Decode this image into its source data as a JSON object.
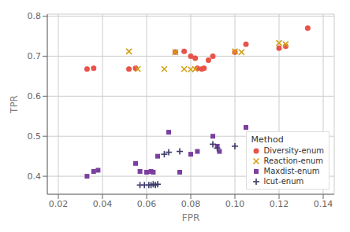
{
  "chart_data": {
    "type": "scatter",
    "xlabel": "FPR",
    "ylabel": "TPR",
    "legend_title": "Method",
    "legend": "lower right",
    "grid": true,
    "xlim": [
      0.015,
      0.145
    ],
    "ylim": [
      0.355,
      0.805
    ],
    "xticks": [
      0.02,
      0.04,
      0.06,
      0.08,
      {
        "value": 0.1,
        "label": "0.10"
      },
      0.12,
      0.14
    ],
    "yticks": [
      0.4,
      0.5,
      0.6,
      0.7,
      0.8
    ],
    "series": [
      {
        "name": "Diversity-enum",
        "color": "#e8534a",
        "marker": "circle",
        "x": [
          0.033,
          0.036,
          0.052,
          0.055,
          0.073,
          0.077,
          0.08,
          0.082,
          0.083,
          0.085,
          0.086,
          0.088,
          0.09,
          0.1,
          0.105,
          0.12,
          0.123,
          0.133
        ],
        "values": [
          0.668,
          0.67,
          0.668,
          0.67,
          0.71,
          0.712,
          0.7,
          0.695,
          0.67,
          0.668,
          0.67,
          0.69,
          0.7,
          0.71,
          0.73,
          0.72,
          0.725,
          0.77
        ]
      },
      {
        "name": "Reaction-enum",
        "color": "#d4a017",
        "marker": "x",
        "x": [
          0.052,
          0.056,
          0.068,
          0.073,
          0.077,
          0.08,
          0.082,
          0.1,
          0.103,
          0.12,
          0.123
        ],
        "values": [
          0.712,
          0.668,
          0.668,
          0.71,
          0.668,
          0.667,
          0.668,
          0.712,
          0.71,
          0.733,
          0.73
        ]
      },
      {
        "name": "Maxdist-enum",
        "color": "#7b3fa0",
        "marker": "square",
        "x": [
          0.033,
          0.036,
          0.038,
          0.055,
          0.057,
          0.06,
          0.062,
          0.063,
          0.065,
          0.07,
          0.075,
          0.08,
          0.083,
          0.09,
          0.092,
          0.093,
          0.105
        ],
        "values": [
          0.4,
          0.412,
          0.415,
          0.432,
          0.412,
          0.41,
          0.412,
          0.41,
          0.45,
          0.51,
          0.41,
          0.455,
          0.462,
          0.5,
          0.475,
          0.462,
          0.522
        ]
      },
      {
        "name": "lcut-enum",
        "color": "#3b3b6b",
        "marker": "plus",
        "x": [
          0.057,
          0.059,
          0.061,
          0.062,
          0.063,
          0.064,
          0.065,
          0.068,
          0.07,
          0.075,
          0.09,
          0.092,
          0.1
        ],
        "values": [
          0.378,
          0.378,
          0.378,
          0.378,
          0.38,
          0.378,
          0.38,
          0.455,
          0.46,
          0.462,
          0.48,
          0.47,
          0.475
        ]
      }
    ]
  }
}
